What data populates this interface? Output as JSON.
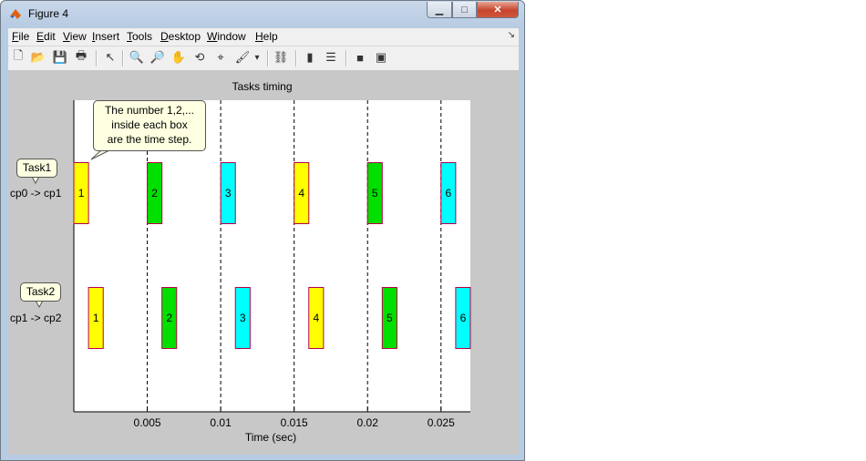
{
  "window": {
    "title": "Figure 4",
    "minimize_glyph": "▁",
    "maximize_glyph": "□",
    "close_glyph": "✕"
  },
  "menu": [
    {
      "label": "File",
      "ul": "F",
      "rest": "ile"
    },
    {
      "label": "Edit",
      "ul": "E",
      "rest": "dit"
    },
    {
      "label": "View",
      "ul": "V",
      "rest": "iew"
    },
    {
      "label": "Insert",
      "ul": "I",
      "rest": "nsert"
    },
    {
      "label": "Tools",
      "ul": "T",
      "rest": "ools"
    },
    {
      "label": "Desktop",
      "ul": "D",
      "rest": "esktop"
    },
    {
      "label": "Window",
      "ul": "W",
      "rest": "indow"
    },
    {
      "label": "Help",
      "ul": "H",
      "rest": "elp"
    }
  ],
  "toolbar": [
    {
      "name": "new-figure-icon",
      "glyph": "🗋"
    },
    {
      "name": "open-file-icon",
      "glyph": "📂"
    },
    {
      "name": "save-icon",
      "glyph": "💾"
    },
    {
      "name": "print-icon",
      "glyph": "🖶"
    },
    {
      "name": "edit-plot-arrow-icon",
      "glyph": "↖"
    },
    {
      "name": "zoom-in-icon",
      "glyph": "🔍"
    },
    {
      "name": "zoom-out-icon",
      "glyph": "🔎"
    },
    {
      "name": "pan-hand-icon",
      "glyph": "✋"
    },
    {
      "name": "rotate-3d-icon",
      "glyph": "⟲"
    },
    {
      "name": "data-cursor-icon",
      "glyph": "⌖"
    },
    {
      "name": "brush-icon",
      "glyph": "🖌"
    },
    {
      "name": "brush-dropdown-icon",
      "glyph": "▾"
    },
    {
      "name": "link-plot-icon",
      "glyph": "⛓"
    },
    {
      "name": "colorbar-icon",
      "glyph": "▮"
    },
    {
      "name": "legend-icon",
      "glyph": "☰"
    },
    {
      "name": "hide-plot-tools-icon",
      "glyph": "■"
    },
    {
      "name": "show-plot-tools-icon",
      "glyph": "▣"
    }
  ],
  "chart_data": {
    "type": "bar",
    "title": "Tasks timing",
    "xlabel": "Time (sec)",
    "ylabel": "",
    "xlim": [
      0,
      0.027
    ],
    "xticks": [
      0.005,
      0.01,
      0.015,
      0.02,
      0.025
    ],
    "xtick_labels": [
      "0.005",
      "0.01",
      "0.015",
      "0.02",
      "0.025"
    ],
    "grid": "dashed vertical lines at x ticks",
    "rows": [
      {
        "task": "Task1",
        "route": "cp0 -> cp1",
        "boxes": [
          {
            "label": "1",
            "start": 0.0,
            "end": 0.001,
            "color": "#ffff00"
          },
          {
            "label": "2",
            "start": 0.005,
            "end": 0.006,
            "color": "#00e000"
          },
          {
            "label": "3",
            "start": 0.01,
            "end": 0.011,
            "color": "#00ffff"
          },
          {
            "label": "4",
            "start": 0.015,
            "end": 0.016,
            "color": "#ffff00"
          },
          {
            "label": "5",
            "start": 0.02,
            "end": 0.021,
            "color": "#00e000"
          },
          {
            "label": "6",
            "start": 0.025,
            "end": 0.026,
            "color": "#00ffff"
          }
        ]
      },
      {
        "task": "Task2",
        "route": "cp1 -> cp2",
        "boxes": [
          {
            "label": "1",
            "start": 0.001,
            "end": 0.002,
            "color": "#ffff00"
          },
          {
            "label": "2",
            "start": 0.006,
            "end": 0.007,
            "color": "#00e000"
          },
          {
            "label": "3",
            "start": 0.011,
            "end": 0.012,
            "color": "#00ffff"
          },
          {
            "label": "4",
            "start": 0.016,
            "end": 0.017,
            "color": "#ffff00"
          },
          {
            "label": "5",
            "start": 0.021,
            "end": 0.022,
            "color": "#00e000"
          },
          {
            "label": "6",
            "start": 0.026,
            "end": 0.027,
            "color": "#00ffff"
          }
        ]
      }
    ],
    "annotation": [
      "The number 1,2,...",
      "inside each box",
      "are the time step."
    ]
  }
}
